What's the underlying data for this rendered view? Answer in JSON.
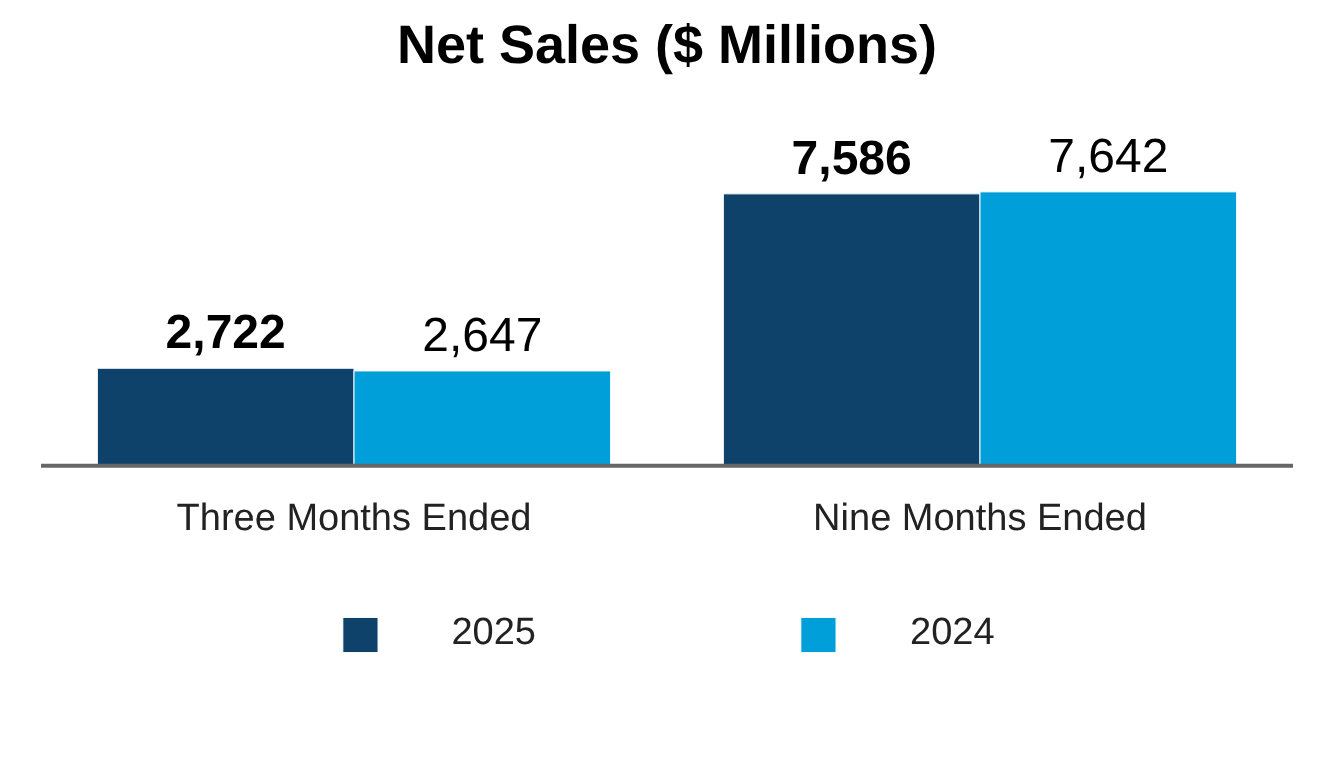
{
  "chart_data": {
    "type": "bar",
    "title": "Net Sales ($ Millions)",
    "categories": [
      "Three Months Ended",
      "Nine Months Ended"
    ],
    "series": [
      {
        "name": "2025",
        "color": "#0e426b",
        "values": [
          2722,
          7586
        ],
        "value_labels": [
          "2,722",
          "7,586"
        ]
      },
      {
        "name": "2024",
        "color": "#009fda",
        "values": [
          2647,
          7642
        ],
        "value_labels": [
          "2,647",
          "7,642"
        ]
      }
    ],
    "legend": "bottom"
  }
}
